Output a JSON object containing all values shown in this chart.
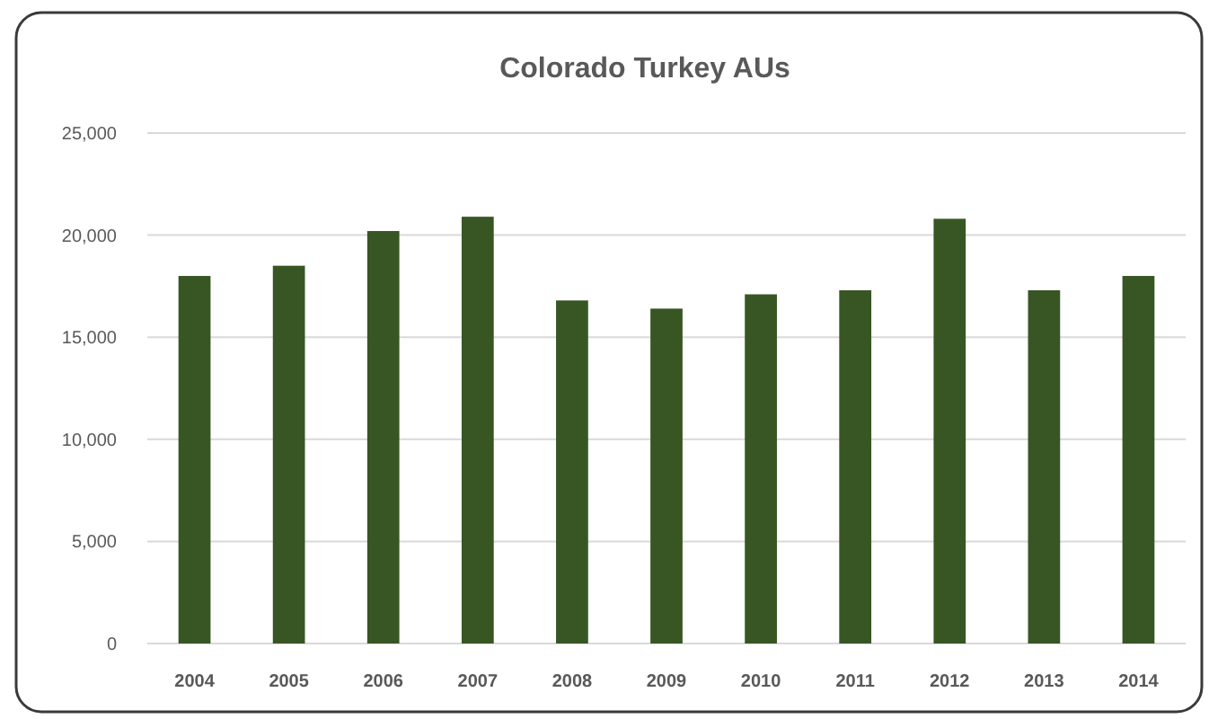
{
  "chart_data": {
    "type": "bar",
    "title": "Colorado Turkey AUs",
    "categories": [
      "2004",
      "2005",
      "2006",
      "2007",
      "2008",
      "2009",
      "2010",
      "2011",
      "2012",
      "2013",
      "2014"
    ],
    "values": [
      18000,
      18500,
      20200,
      20900,
      16800,
      16400,
      17100,
      17300,
      20800,
      17300,
      18000
    ],
    "color": "#375623",
    "ylim": [
      0,
      25000
    ],
    "yticks": [
      {
        "value": 0,
        "label": "0"
      },
      {
        "value": 5000,
        "label": "5,000"
      },
      {
        "value": 10000,
        "label": "10,000"
      },
      {
        "value": 15000,
        "label": "15,000"
      },
      {
        "value": 20000,
        "label": "20,000"
      },
      {
        "value": 25000,
        "label": "25,000"
      }
    ],
    "grid": "y"
  }
}
